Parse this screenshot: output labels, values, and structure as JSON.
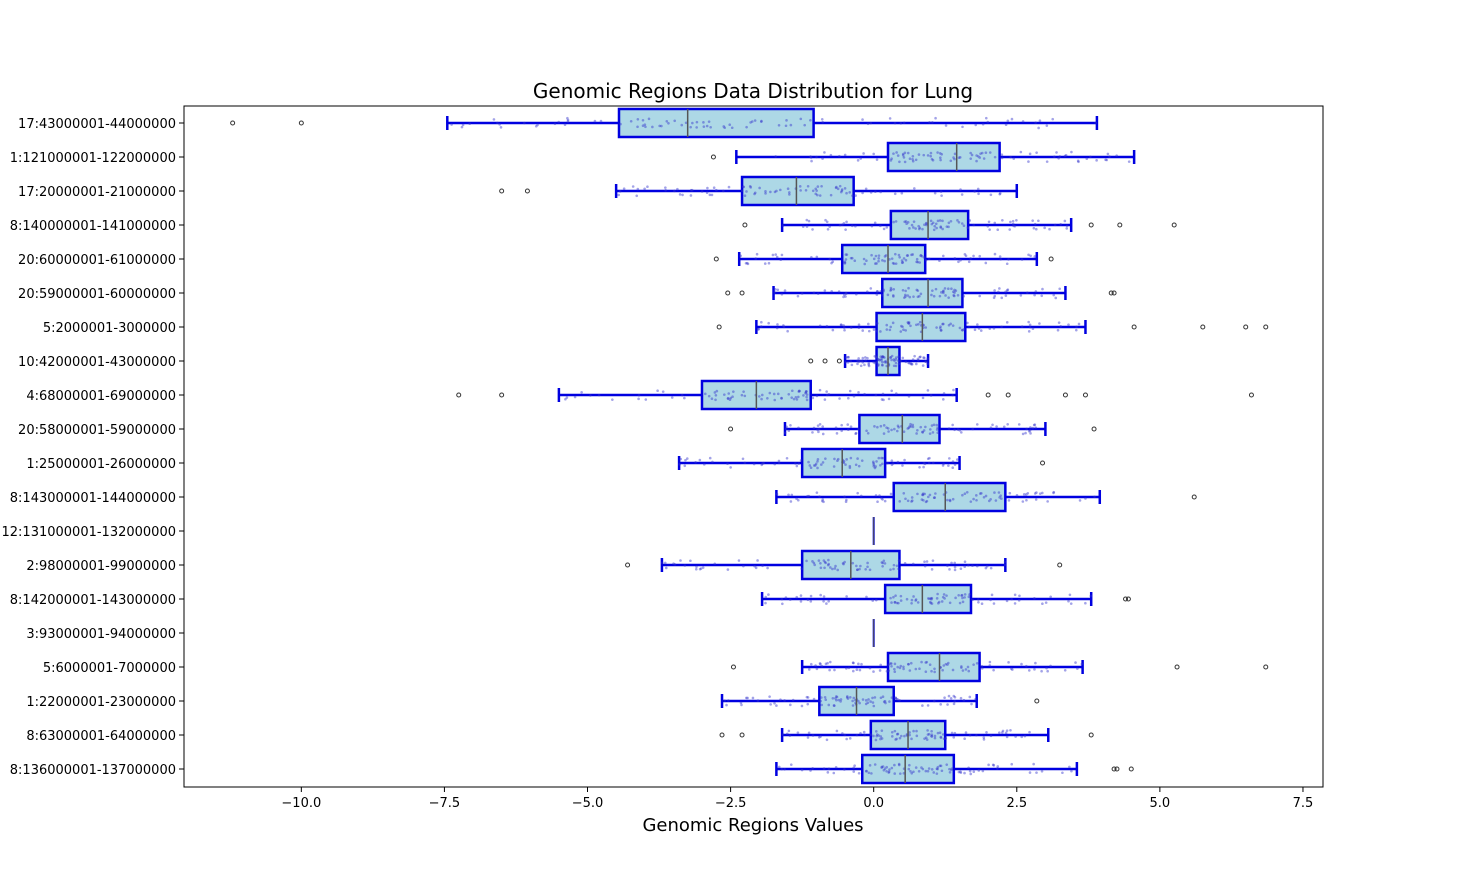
{
  "chart_data": {
    "type": "box",
    "title": "Genomic Regions Data Distribution for Lung",
    "xlabel": "Genomic Regions Values",
    "ylabel": "",
    "xlim": [
      -12.05,
      7.85
    ],
    "xticks": [
      -10.0,
      -7.5,
      -5.0,
      -2.5,
      0.0,
      2.5,
      5.0,
      7.5
    ],
    "xtick_labels": [
      "−10.0",
      "−7.5",
      "−5.0",
      "−2.5",
      "0.0",
      "2.5",
      "5.0",
      "7.5"
    ],
    "grid": false,
    "legend": "none",
    "orientation": "horizontal",
    "categories": [
      "17:43000001-44000000",
      "1:121000001-122000000",
      "17:20000001-21000000",
      "8:140000001-141000000",
      "20:60000001-61000000",
      "20:59000001-60000000",
      "5:2000001-3000000",
      "10:42000001-43000000",
      "4:68000001-69000000",
      "20:58000001-59000000",
      "1:25000001-26000000",
      "8:143000001-144000000",
      "12:131000001-132000000",
      "2:98000001-99000000",
      "8:142000001-143000000",
      "3:93000001-94000000",
      "5:6000001-7000000",
      "1:22000001-23000000",
      "8:63000001-64000000",
      "8:136000001-137000000"
    ],
    "series": [
      {
        "whisker_low": -7.45,
        "q1": -4.45,
        "median": -3.25,
        "q3": -1.05,
        "whisker_high": 3.9,
        "outliers": [
          -11.2,
          -10.0
        ]
      },
      {
        "whisker_low": -2.4,
        "q1": 0.25,
        "median": 1.45,
        "q3": 2.2,
        "whisker_high": 4.55,
        "outliers": [
          -2.8
        ]
      },
      {
        "whisker_low": -4.5,
        "q1": -2.3,
        "median": -1.35,
        "q3": -0.35,
        "whisker_high": 2.5,
        "outliers": [
          -6.5,
          -6.05
        ]
      },
      {
        "whisker_low": -1.6,
        "q1": 0.3,
        "median": 0.95,
        "q3": 1.65,
        "whisker_high": 3.45,
        "outliers": [
          -2.25,
          3.8,
          4.3,
          5.25
        ]
      },
      {
        "whisker_low": -2.35,
        "q1": -0.55,
        "median": 0.25,
        "q3": 0.9,
        "whisker_high": 2.85,
        "outliers": [
          -2.75,
          3.1
        ]
      },
      {
        "whisker_low": -1.75,
        "q1": 0.15,
        "median": 0.95,
        "q3": 1.55,
        "whisker_high": 3.35,
        "outliers": [
          -2.55,
          -2.3,
          4.15,
          4.2
        ]
      },
      {
        "whisker_low": -2.05,
        "q1": 0.05,
        "median": 0.85,
        "q3": 1.6,
        "whisker_high": 3.7,
        "outliers": [
          -2.7,
          4.55,
          5.75,
          6.5,
          6.85
        ]
      },
      {
        "whisker_low": -0.5,
        "q1": 0.05,
        "median": 0.25,
        "q3": 0.45,
        "whisker_high": 0.95,
        "outliers": [
          -1.1,
          -0.85,
          -0.6
        ]
      },
      {
        "whisker_low": -5.5,
        "q1": -3.0,
        "median": -2.05,
        "q3": -1.1,
        "whisker_high": 1.45,
        "outliers": [
          -7.25,
          -6.5,
          2.0,
          2.35,
          3.35,
          3.7,
          6.6
        ]
      },
      {
        "whisker_low": -1.55,
        "q1": -0.25,
        "median": 0.5,
        "q3": 1.15,
        "whisker_high": 3.0,
        "outliers": [
          -2.5,
          3.85
        ]
      },
      {
        "whisker_low": -3.4,
        "q1": -1.25,
        "median": -0.55,
        "q3": 0.2,
        "whisker_high": 1.5,
        "outliers": [
          2.95
        ]
      },
      {
        "whisker_low": -1.7,
        "q1": 0.35,
        "median": 1.25,
        "q3": 2.3,
        "whisker_high": 3.95,
        "outliers": [
          5.6
        ]
      },
      {
        "whisker_low": 0.0,
        "q1": 0.0,
        "median": 0.0,
        "q3": 0.0,
        "whisker_high": 0.0,
        "outliers": []
      },
      {
        "whisker_low": -3.7,
        "q1": -1.25,
        "median": -0.4,
        "q3": 0.45,
        "whisker_high": 2.3,
        "outliers": [
          -4.3,
          3.25
        ]
      },
      {
        "whisker_low": -1.95,
        "q1": 0.2,
        "median": 0.85,
        "q3": 1.7,
        "whisker_high": 3.8,
        "outliers": [
          4.4,
          4.45
        ]
      },
      {
        "whisker_low": 0.0,
        "q1": 0.0,
        "median": 0.0,
        "q3": 0.0,
        "whisker_high": 0.0,
        "outliers": []
      },
      {
        "whisker_low": -1.25,
        "q1": 0.25,
        "median": 1.15,
        "q3": 1.85,
        "whisker_high": 3.65,
        "outliers": [
          -2.45,
          5.3,
          6.85
        ]
      },
      {
        "whisker_low": -2.65,
        "q1": -0.95,
        "median": -0.3,
        "q3": 0.35,
        "whisker_high": 1.8,
        "outliers": [
          2.85
        ]
      },
      {
        "whisker_low": -1.6,
        "q1": -0.05,
        "median": 0.6,
        "q3": 1.25,
        "whisker_high": 3.05,
        "outliers": [
          -2.65,
          -2.3,
          3.8
        ]
      },
      {
        "whisker_low": -1.7,
        "q1": -0.2,
        "median": 0.55,
        "q3": 1.4,
        "whisker_high": 3.55,
        "outliers": [
          4.2,
          4.25,
          4.5
        ]
      }
    ],
    "colors": {
      "box_fill": "#add8e6",
      "box_edge": "#0000e0",
      "median": "#555555",
      "points": "#3333cc",
      "outlier_edge": "#333333"
    }
  }
}
